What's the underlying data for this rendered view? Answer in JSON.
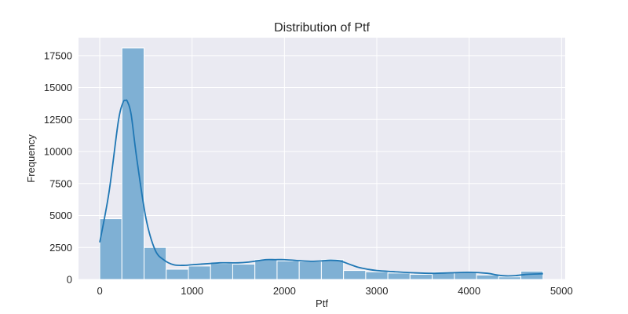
{
  "chart_data": {
    "type": "bar",
    "title": "Distribution of Ptf",
    "xlabel": "Ptf",
    "ylabel": "Frequency",
    "xlim": [
      -230,
      5040
    ],
    "ylim": [
      0,
      18900
    ],
    "xticks": [
      0,
      1000,
      2000,
      3000,
      4000,
      5000
    ],
    "yticks": [
      0,
      2500,
      5000,
      7500,
      10000,
      12500,
      15000,
      17500
    ],
    "grid": true,
    "colors": {
      "background": "#eaeaf2",
      "grid": "#ffffff",
      "bar_fill": "#7fb0d4",
      "bar_edge": "#ffffff",
      "kde_line": "#1f77b4",
      "text": "#262626"
    },
    "bins": {
      "start": 0,
      "width": 240,
      "counts": [
        4750,
        18100,
        2500,
        800,
        1050,
        1250,
        1200,
        1550,
        1450,
        1400,
        1550,
        700,
        600,
        500,
        400,
        550,
        550,
        350,
        200,
        650
      ]
    },
    "kde": {
      "x": [
        0,
        100,
        200,
        250,
        280,
        300,
        340,
        400,
        500,
        600,
        700,
        800,
        900,
        1000,
        1100,
        1200,
        1300,
        1400,
        1500,
        1600,
        1700,
        1800,
        1900,
        2000,
        2100,
        2200,
        2300,
        2400,
        2500,
        2600,
        2700,
        2800,
        2900,
        3000,
        3200,
        3400,
        3600,
        3800,
        4000,
        4200,
        4300,
        4400,
        4500,
        4600,
        4700,
        4800
      ],
      "y": [
        2900,
        6800,
        12300,
        13800,
        14000,
        13900,
        12900,
        9500,
        4800,
        2300,
        1500,
        1150,
        1100,
        1150,
        1200,
        1250,
        1300,
        1300,
        1300,
        1350,
        1450,
        1550,
        1550,
        1550,
        1500,
        1450,
        1420,
        1450,
        1500,
        1450,
        1200,
        950,
        800,
        700,
        600,
        520,
        480,
        520,
        560,
        480,
        350,
        280,
        300,
        380,
        420,
        450
      ]
    }
  }
}
